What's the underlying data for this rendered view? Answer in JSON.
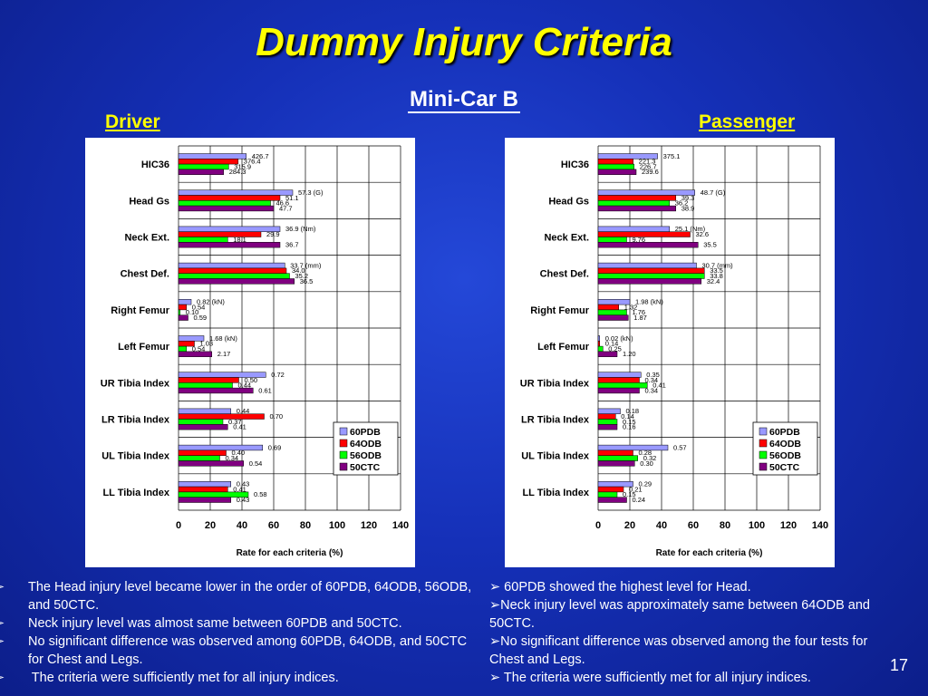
{
  "title": "Dummy Injury Criteria",
  "subtitle": "Mini-Car B",
  "driver_label": "Driver",
  "passenger_label": "Passenger",
  "page_number": "17",
  "colors": {
    "60PDB": "#9999ff",
    "64ODB": "#ff0000",
    "56ODB": "#00ff00",
    "50CTC": "#800080"
  },
  "chart_data": [
    {
      "type": "bar",
      "orientation": "horizontal",
      "xlabel": "Rate for each criteria (%)",
      "xlim": [
        0,
        140
      ],
      "xticks": [
        0,
        20,
        40,
        60,
        80,
        100,
        120,
        140
      ],
      "grid": true,
      "legend_position": "bottom-right",
      "categories": [
        "HIC36",
        "Head Gs",
        "Neck Ext.",
        "Chest Def.",
        "Right Femur",
        "Left Femur",
        "UR Tibia Index",
        "LR Tibia Index",
        "UL Tibia Index",
        "LL Tibia Index"
      ],
      "series": [
        {
          "name": "60PDB",
          "values": [
            42.7,
            72,
            64,
            67,
            8,
            16,
            55,
            33,
            53,
            33
          ],
          "labels": [
            "426.7",
            "57.3 (G)",
            "36.9 (Nm)",
            "33.7 (mm)",
            "0.82 (kN)",
            "1.68 (kN)",
            "0.72",
            "0.44",
            "0.69",
            "0.43"
          ]
        },
        {
          "name": "64ODB",
          "values": [
            37.6,
            64,
            52,
            68,
            5,
            10,
            38,
            54,
            30,
            31
          ],
          "labels": [
            "376.4",
            "51.1",
            "29.9",
            "34.0",
            "0.54",
            "1.03",
            "0.50",
            "0.70",
            "0.40",
            "0.41"
          ]
        },
        {
          "name": "56ODB",
          "values": [
            31.6,
            58,
            31,
            70,
            1,
            5,
            34,
            28,
            26,
            44
          ],
          "labels": [
            "315.9",
            "46.6",
            "18.1",
            "35.2",
            "0.10",
            "0.54",
            "0.44",
            "0.37",
            "0.34",
            "0.58"
          ]
        },
        {
          "name": "50CTC",
          "values": [
            28.4,
            60,
            64,
            73,
            6,
            21,
            47,
            31,
            41,
            33
          ],
          "labels": [
            "284.3",
            "47.7",
            "36.7",
            "36.5",
            "0.59",
            "2.17",
            "0.61",
            "0.41",
            "0.54",
            "0.43"
          ]
        }
      ]
    },
    {
      "type": "bar",
      "orientation": "horizontal",
      "xlabel": "Rate for each criteria (%)",
      "xlim": [
        0,
        140
      ],
      "xticks": [
        0,
        20,
        40,
        60,
        80,
        100,
        120,
        140
      ],
      "grid": true,
      "legend_position": "bottom-right",
      "categories": [
        "HIC36",
        "Head Gs",
        "Neck Ext.",
        "Chest Def.",
        "Right Femur",
        "Left Femur",
        "UR Tibia Index",
        "LR Tibia Index",
        "UL Tibia Index",
        "LL Tibia Index"
      ],
      "series": [
        {
          "name": "60PDB",
          "values": [
            37.5,
            61,
            45,
            62,
            20,
            1,
            27,
            14,
            44,
            22
          ],
          "labels": [
            "375.1",
            "48.7 (G)",
            "25.1 (Nm)",
            "30.7 (mm)",
            "1.98 (kN)",
            "0.02 (kN)",
            "0.35",
            "0.18",
            "0.57",
            "0.29"
          ]
        },
        {
          "name": "64ODB",
          "values": [
            22.1,
            49,
            58,
            67,
            13,
            1,
            26,
            11,
            22,
            16
          ],
          "labels": [
            "221.3",
            "39.3",
            "32.6",
            "33.5",
            "1.32",
            "0.14",
            "0.34",
            "0.14",
            "0.28",
            "0.21"
          ]
        },
        {
          "name": "56ODB",
          "values": [
            22.7,
            45,
            18,
            67,
            18,
            3,
            31,
            12,
            25,
            12
          ],
          "labels": [
            "226.7",
            "36.2",
            "9.76",
            "33.8",
            "1.76",
            "0.25",
            "0.41",
            "0.15",
            "0.32",
            "0.15"
          ]
        },
        {
          "name": "50CTC",
          "values": [
            24.0,
            49,
            63,
            65,
            19,
            12,
            26,
            12,
            23,
            18
          ],
          "labels": [
            "239.6",
            "38.9",
            "35.5",
            "32.4",
            "1.87",
            "1.20",
            "0.34",
            "0.16",
            "0.30",
            "0.24"
          ]
        }
      ]
    }
  ],
  "driver_bullets": [
    "The Head injury level became lower in the order of 60PDB, 64ODB, 56ODB, and 50CTC.",
    "Neck injury level was almost same between 60PDB and 50CTC.",
    "No significant difference was observed among 60PDB, 64ODB, and 50CTC for Chest and Legs.",
    " The criteria were sufficiently met for all  injury indices."
  ],
  "passenger_bullets": [
    " 60PDB showed the highest level for Head.",
    "Neck injury level was approximately same between 64ODB and 50CTC.",
    "No significant difference was observed among the four tests for Chest and Legs.",
    " The criteria were sufficiently met for all injury indices."
  ],
  "bullet_glyph": "➢"
}
